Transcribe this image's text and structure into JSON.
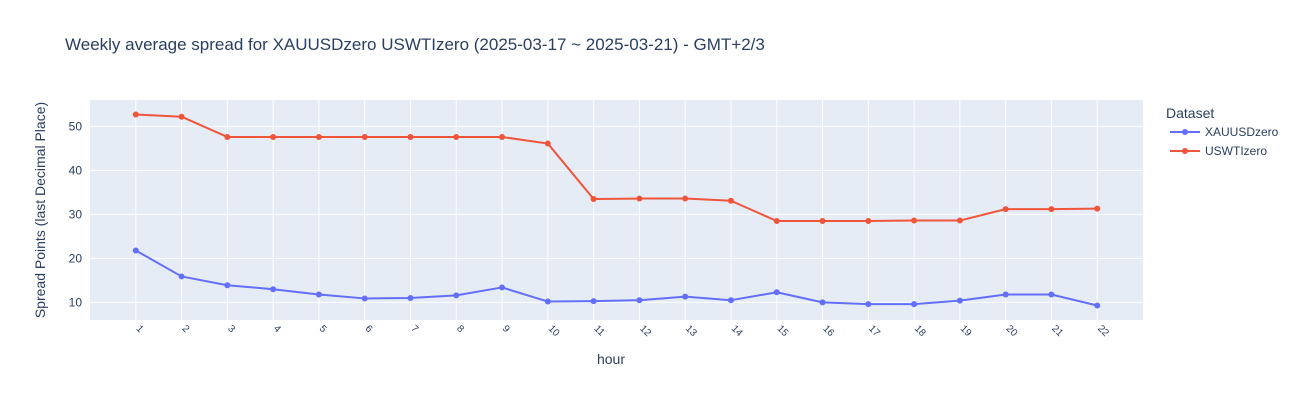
{
  "chart_data": {
    "type": "line",
    "title": "Weekly average spread for  XAUUSDzero USWTIzero (2025-03-17 ~ 2025-03-21) - GMT+2/3",
    "xlabel": "hour",
    "ylabel": "Spread Points (last Decimal Place)",
    "x": [
      1,
      2,
      3,
      4,
      5,
      6,
      7,
      8,
      9,
      10,
      11,
      12,
      13,
      14,
      15,
      16,
      17,
      18,
      19,
      20,
      21,
      22
    ],
    "ylim": [
      6,
      56
    ],
    "yticks": [
      10,
      20,
      30,
      40,
      50
    ],
    "grid": true,
    "legend": {
      "title": "Dataset",
      "position": "right"
    },
    "series": [
      {
        "name": "XAUUSDzero",
        "color": "#636efa",
        "values": [
          21.8,
          15.9,
          13.9,
          13.0,
          11.8,
          10.9,
          11.0,
          11.6,
          13.4,
          10.2,
          10.3,
          10.5,
          11.3,
          10.5,
          12.3,
          10.0,
          9.6,
          9.6,
          10.4,
          11.8,
          11.8,
          9.3
        ]
      },
      {
        "name": "USWTIzero",
        "color": "#ef553b",
        "values": [
          52.7,
          52.2,
          47.6,
          47.6,
          47.6,
          47.6,
          47.6,
          47.6,
          47.6,
          46.1,
          33.5,
          33.6,
          33.6,
          33.1,
          28.5,
          28.5,
          28.5,
          28.6,
          28.6,
          31.2,
          31.2,
          31.3
        ]
      }
    ],
    "plot_background": "#e5ecf6",
    "gridline_color": "#ffffff"
  }
}
